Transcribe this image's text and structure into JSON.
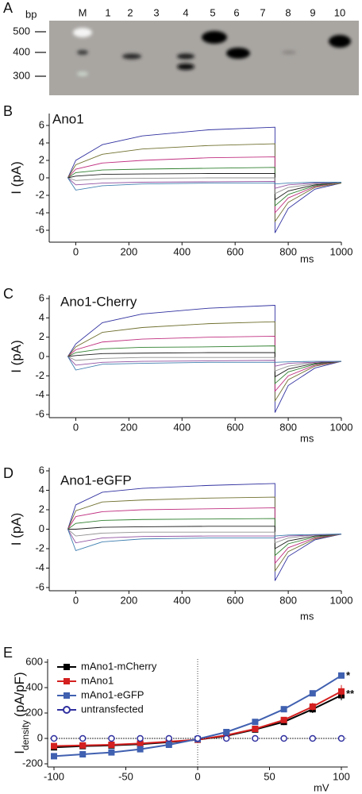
{
  "gel": {
    "panel_label": "A",
    "unit": "bp",
    "lanes": [
      "M",
      "1",
      "2",
      "3",
      "4",
      "5",
      "6",
      "7",
      "8",
      "9",
      "10"
    ],
    "sizes": [
      500,
      400,
      300
    ]
  },
  "chart_data": [
    {
      "type": "line",
      "panel_label": "B",
      "title": "Ano1",
      "xlabel": "ms",
      "ylabel": "I (pA)",
      "x": [
        -30,
        0,
        0,
        100,
        250,
        500,
        750,
        750,
        800,
        900,
        1000
      ],
      "xlim": [
        -100,
        1000
      ],
      "xticks": [
        0,
        200,
        400,
        600,
        800,
        1000
      ],
      "ylim": [
        -7,
        7
      ],
      "yticks": [
        -6,
        -4,
        -2,
        0,
        2,
        4,
        6
      ],
      "series": [
        {
          "color": "#3030a0",
          "values": [
            0,
            2.0,
            2.0,
            3.8,
            4.8,
            5.5,
            5.8,
            -6.3,
            -3.5,
            -1.3,
            -0.6
          ]
        },
        {
          "color": "#707030",
          "values": [
            0,
            1.5,
            1.5,
            2.7,
            3.3,
            3.7,
            3.9,
            -5.0,
            -2.8,
            -1.1,
            -0.6
          ]
        },
        {
          "color": "#c03080",
          "values": [
            0,
            1.0,
            1.0,
            1.7,
            2.0,
            2.3,
            2.4,
            -4.0,
            -2.3,
            -1.0,
            -0.5
          ]
        },
        {
          "color": "#308030",
          "values": [
            0,
            0.6,
            0.6,
            0.9,
            1.0,
            1.1,
            1.2,
            -3.2,
            -1.9,
            -0.9,
            -0.5
          ]
        },
        {
          "color": "#202020",
          "values": [
            0,
            0.2,
            0.2,
            0.4,
            0.45,
            0.5,
            0.5,
            -2.5,
            -1.5,
            -0.8,
            -0.5
          ]
        },
        {
          "color": "#909090",
          "values": [
            0,
            -0.3,
            -0.3,
            -0.1,
            -0.05,
            0,
            0,
            -1.8,
            -1.1,
            -0.7,
            -0.5
          ]
        },
        {
          "color": "#9050a0",
          "values": [
            0,
            -0.8,
            -0.8,
            -0.6,
            -0.5,
            -0.45,
            -0.4,
            -1.2,
            -0.8,
            -0.6,
            -0.5
          ]
        },
        {
          "color": "#4080b0",
          "values": [
            0,
            -1.4,
            -1.4,
            -0.9,
            -0.7,
            -0.6,
            -0.6,
            -0.7,
            -0.6,
            -0.5,
            -0.5
          ]
        }
      ]
    },
    {
      "type": "line",
      "panel_label": "C",
      "title": "Ano1-Cherry",
      "xlabel": "ms",
      "ylabel": "I (pA)",
      "x": [
        -30,
        0,
        0,
        100,
        250,
        500,
        750,
        750,
        800,
        900,
        1000
      ],
      "xlim": [
        -100,
        1000
      ],
      "xticks": [
        0,
        200,
        400,
        600,
        800,
        1000
      ],
      "ylim": [
        -6,
        6
      ],
      "yticks": [
        -6,
        -4,
        -2,
        0,
        2,
        4,
        6
      ],
      "series": [
        {
          "color": "#3030a0",
          "values": [
            0,
            1.3,
            1.3,
            3.5,
            4.4,
            5.0,
            5.3,
            -5.8,
            -3.0,
            -1.2,
            -0.5
          ]
        },
        {
          "color": "#707030",
          "values": [
            0,
            1.0,
            1.0,
            2.5,
            3.0,
            3.4,
            3.6,
            -4.6,
            -2.4,
            -1.0,
            -0.5
          ]
        },
        {
          "color": "#c03080",
          "values": [
            0,
            0.7,
            0.7,
            1.5,
            1.8,
            2.0,
            2.1,
            -3.6,
            -2.0,
            -0.9,
            -0.5
          ]
        },
        {
          "color": "#308030",
          "values": [
            0,
            0.4,
            0.4,
            0.8,
            0.95,
            1.0,
            1.1,
            -2.8,
            -1.6,
            -0.8,
            -0.5
          ]
        },
        {
          "color": "#202020",
          "values": [
            0,
            0.1,
            0.1,
            0.3,
            0.35,
            0.4,
            0.4,
            -2.1,
            -1.3,
            -0.7,
            -0.5
          ]
        },
        {
          "color": "#909090",
          "values": [
            0,
            -0.4,
            -0.4,
            -0.2,
            -0.1,
            -0.1,
            -0.1,
            -1.5,
            -1.0,
            -0.6,
            -0.5
          ]
        },
        {
          "color": "#9050a0",
          "values": [
            0,
            -0.9,
            -0.9,
            -0.6,
            -0.5,
            -0.45,
            -0.4,
            -1.0,
            -0.7,
            -0.6,
            -0.5
          ]
        },
        {
          "color": "#4080b0",
          "values": [
            0,
            -1.4,
            -1.4,
            -0.8,
            -0.7,
            -0.6,
            -0.6,
            -0.6,
            -0.55,
            -0.5,
            -0.5
          ]
        }
      ]
    },
    {
      "type": "line",
      "panel_label": "D",
      "title": "Ano1-eGFP",
      "xlabel": "ms",
      "ylabel": "I (pA)",
      "x": [
        -30,
        0,
        0,
        100,
        250,
        500,
        750,
        750,
        800,
        900,
        1000
      ],
      "xlim": [
        -100,
        1000
      ],
      "xticks": [
        0,
        200,
        400,
        600,
        800,
        1000
      ],
      "ylim": [
        -6,
        6
      ],
      "yticks": [
        -6,
        -4,
        -2,
        0,
        2,
        4,
        6
      ],
      "series": [
        {
          "color": "#3030a0",
          "values": [
            0,
            2.5,
            2.5,
            3.8,
            4.2,
            4.5,
            4.7,
            -5.3,
            -2.8,
            -1.1,
            -0.5
          ]
        },
        {
          "color": "#707030",
          "values": [
            0,
            1.9,
            1.9,
            2.8,
            3.0,
            3.2,
            3.3,
            -4.3,
            -2.3,
            -1.0,
            -0.5
          ]
        },
        {
          "color": "#c03080",
          "values": [
            0,
            1.3,
            1.3,
            1.8,
            2.0,
            2.1,
            2.2,
            -3.5,
            -1.9,
            -0.9,
            -0.5
          ]
        },
        {
          "color": "#308030",
          "values": [
            0,
            0.6,
            0.6,
            0.9,
            1.0,
            1.05,
            1.1,
            -2.7,
            -1.5,
            -0.8,
            -0.5
          ]
        },
        {
          "color": "#202020",
          "values": [
            0,
            0,
            0,
            0.2,
            0.25,
            0.3,
            0.3,
            -2.0,
            -1.2,
            -0.7,
            -0.5
          ]
        },
        {
          "color": "#909090",
          "values": [
            0,
            -0.7,
            -0.7,
            -0.4,
            -0.3,
            -0.3,
            -0.3,
            -1.4,
            -0.9,
            -0.6,
            -0.5
          ]
        },
        {
          "color": "#9050a0",
          "values": [
            0,
            -1.4,
            -1.4,
            -0.9,
            -0.75,
            -0.7,
            -0.7,
            -1.0,
            -0.7,
            -0.6,
            -0.5
          ]
        },
        {
          "color": "#4080b0",
          "values": [
            0,
            -2.2,
            -2.2,
            -1.3,
            -1.0,
            -0.9,
            -0.9,
            -0.7,
            -0.6,
            -0.55,
            -0.5
          ]
        }
      ]
    },
    {
      "type": "iv",
      "panel_label": "E",
      "xlabel": "mV",
      "ylabel": "I",
      "ylabel_sub": "density",
      "ylabel_unit": "(pA/pF)",
      "x": [
        -100,
        -80,
        -60,
        -40,
        -20,
        0,
        20,
        40,
        60,
        80,
        100
      ],
      "xlim": [
        -100,
        100
      ],
      "xticks": [
        -100,
        -50,
        0,
        50,
        100
      ],
      "ylim": [
        -200,
        600
      ],
      "yticks": [
        -200,
        0,
        200,
        400,
        600
      ],
      "legend": "upper left",
      "annotations": [
        "*",
        "**"
      ],
      "series": [
        {
          "name": "mAno1-mCherry",
          "color": "#000000",
          "marker": "square",
          "line_style": "solid",
          "values": [
            -70,
            -60,
            -55,
            -45,
            -30,
            -10,
            20,
            70,
            130,
            230,
            340
          ],
          "errors": [
            15,
            15,
            15,
            12,
            10,
            8,
            10,
            15,
            25,
            30,
            40
          ]
        },
        {
          "name": "mAno1",
          "color": "#d42020",
          "marker": "square",
          "line_style": "solid",
          "values": [
            -60,
            -55,
            -50,
            -40,
            -25,
            -10,
            25,
            75,
            145,
            250,
            370
          ],
          "errors": [
            15,
            15,
            12,
            10,
            8,
            8,
            10,
            15,
            20,
            30,
            50
          ]
        },
        {
          "name": "mAno1-eGFP",
          "color": "#4060b0",
          "marker": "square",
          "line_style": "solid",
          "values": [
            -140,
            -125,
            -110,
            -85,
            -50,
            -5,
            50,
            130,
            230,
            355,
            495
          ],
          "errors": [
            12,
            12,
            10,
            10,
            8,
            8,
            8,
            10,
            10,
            12,
            20
          ]
        },
        {
          "name": "untransfected",
          "color": "#3030a0",
          "marker": "open-circle",
          "line_style": "dotted",
          "values": [
            0,
            0,
            0,
            0,
            0,
            0,
            0,
            0,
            0,
            0,
            0
          ]
        }
      ]
    }
  ]
}
